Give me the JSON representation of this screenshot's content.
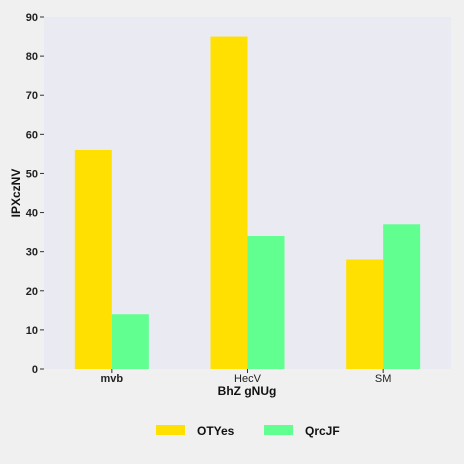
{
  "chart_data": {
    "type": "bar",
    "title": "",
    "xlabel": "BhZ gNUg",
    "ylabel": "IPXczNV",
    "categories": [
      "mvb",
      "HecV",
      "SM"
    ],
    "series": [
      {
        "name": "OTYes",
        "values": [
          56,
          85,
          28
        ],
        "color": "#ffe000"
      },
      {
        "name": "QrcJF",
        "values": [
          14,
          34,
          37
        ],
        "color": "#60ff90"
      }
    ],
    "ylim": [
      0,
      90
    ],
    "yticks": [
      0,
      10,
      20,
      30,
      40,
      50,
      60,
      70,
      80,
      90
    ],
    "grid": false,
    "legend_position": "bottom",
    "plot_background": "#eaeaf2"
  }
}
